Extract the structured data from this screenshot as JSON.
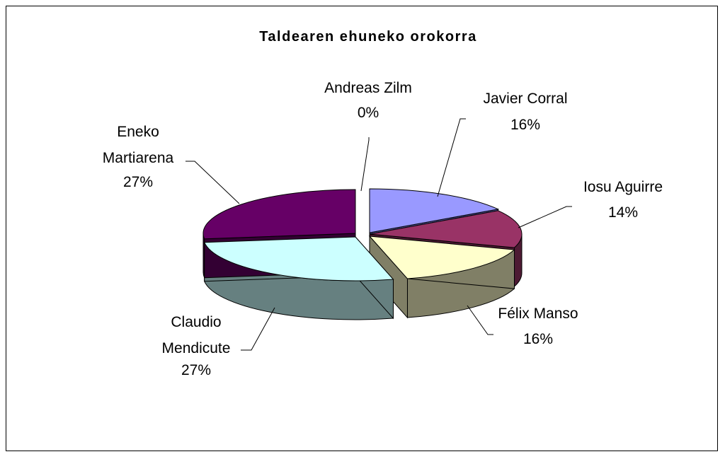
{
  "chart_data": {
    "type": "pie",
    "title": "Taldearen ehuneko orokorra",
    "style": "3d-exploded",
    "legend": "none",
    "slices": [
      {
        "label": "Javier Corral",
        "value": 16,
        "percent_label": "16%",
        "color": "#9999ff",
        "side_color": "#5a5aa6"
      },
      {
        "label": "Iosu Aguirre",
        "value": 14,
        "percent_label": "14%",
        "color": "#993366",
        "side_color": "#4d1a33"
      },
      {
        "label": "Félix Manso",
        "value": 16,
        "percent_label": "16%",
        "color": "#ffffcc",
        "side_color": "#807f66"
      },
      {
        "label": "Claudio Mendicute",
        "value": 27,
        "percent_label": "27%",
        "color": "#ccffff",
        "side_color": "#668080"
      },
      {
        "label": "Eneko Martiarena",
        "value": 27,
        "percent_label": "27%",
        "color": "#660066",
        "side_color": "#330033"
      },
      {
        "label": "Andreas Zilm",
        "value": 0,
        "percent_label": "0%",
        "color": "#ffffff",
        "side_color": "#bfbfbf"
      }
    ]
  }
}
